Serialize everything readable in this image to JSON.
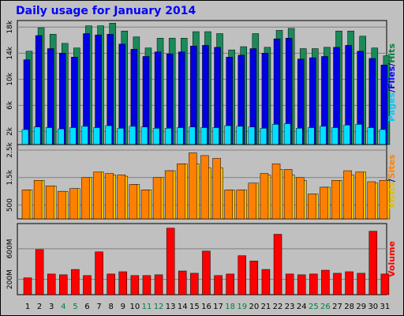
{
  "chart_data": {
    "type": "bar",
    "title": "Daily usage for January 2014",
    "days": [
      "1",
      "2",
      "3",
      "4",
      "5",
      "6",
      "7",
      "8",
      "9",
      "10",
      "11",
      "12",
      "13",
      "14",
      "15",
      "16",
      "17",
      "18",
      "19",
      "20",
      "21",
      "22",
      "23",
      "24",
      "25",
      "26",
      "27",
      "28",
      "29",
      "30",
      "31"
    ],
    "weekend_days": [
      "4",
      "5",
      "11",
      "12",
      "18",
      "19",
      "25",
      "26"
    ],
    "panels": [
      {
        "id": "pages-files-hits",
        "ylabel_parts": [
          {
            "text": "Pages",
            "color": "#00c8ff"
          },
          {
            "text": "/",
            "color": "#00008b"
          },
          {
            "text": "Files",
            "color": "#0000ff"
          },
          {
            "text": "/",
            "color": "#00008b"
          },
          {
            "text": "Hits",
            "color": "#008040"
          }
        ],
        "ylim": [
          0,
          19000
        ],
        "yticks": [
          2000,
          6000,
          10000,
          14000,
          18000
        ],
        "ytick_labels": [
          "2k",
          "6k",
          "10k",
          "14k",
          "18k"
        ],
        "series": [
          {
            "name": "Hits",
            "color": "#1a8a5a",
            "values": [
              14300,
              17900,
              16900,
              15500,
              14800,
              18200,
              18200,
              18600,
              17400,
              16500,
              14800,
              16300,
              16300,
              16300,
              17300,
              17300,
              17000,
              14500,
              15000,
              17000,
              14900,
              17500,
              17800,
              14700,
              14700,
              14900,
              17400,
              17400,
              16600,
              14800,
              13600
            ]
          },
          {
            "name": "Files",
            "color": "#0000e0",
            "values": [
              13000,
              16700,
              14700,
              14000,
              13400,
              17000,
              16800,
              16900,
              15400,
              14600,
              13500,
              14200,
              13900,
              14200,
              15100,
              15200,
              14900,
              13400,
              13700,
              14700,
              14000,
              16200,
              16300,
              13100,
              13300,
              13500,
              14900,
              15200,
              14300,
              13200,
              12200
            ]
          },
          {
            "name": "Pages",
            "color": "#00e0ff",
            "values": [
              2300,
              2700,
              2600,
              2400,
              2600,
              2800,
              2600,
              2900,
              2500,
              2800,
              2700,
              2500,
              2500,
              2600,
              2700,
              2600,
              2600,
              2900,
              2800,
              2700,
              2500,
              3100,
              3200,
              2500,
              2600,
              2800,
              2600,
              3000,
              3100,
              2600,
              2300
            ]
          }
        ]
      },
      {
        "id": "visits-sites",
        "ylabel_parts": [
          {
            "text": "Visits",
            "color": "#e0c000"
          },
          {
            "text": "/",
            "color": "#00008b"
          },
          {
            "text": "Sites",
            "color": "#ff8000"
          }
        ],
        "ylim": [
          0,
          2700
        ],
        "yticks": [
          500,
          1500,
          2500
        ],
        "ytick_labels": [
          "500",
          "1.5k",
          "2.5k"
        ],
        "series": [
          {
            "name": "Visits",
            "color": "#ffc000",
            "values": [
              1050,
              1400,
              1200,
              1000,
              1100,
              1500,
              1700,
              1600,
              1550,
              1250,
              1050,
              1500,
              1750,
              2000,
              2000,
              1850,
              1850,
              1050,
              1050,
              1300,
              1600,
              1800,
              1600,
              1400,
              900,
              1150,
              1400,
              1600,
              1700,
              1300,
              1400
            ]
          },
          {
            "name": "Sites",
            "color": "#ff8000",
            "values": [
              1050,
              1400,
              1200,
              1000,
              1100,
              1500,
              1700,
              1650,
              1600,
              1250,
              1050,
              1500,
              1750,
              2000,
              2400,
              2300,
              2200,
              1050,
              1050,
              1300,
              1650,
              2000,
              1800,
              1500,
              900,
              1150,
              1400,
              1750,
              1700,
              1350,
              1400
            ]
          }
        ]
      },
      {
        "id": "volume",
        "ylabel_parts": [
          {
            "text": "Volume",
            "color": "#ff0000"
          }
        ],
        "ylim": [
          0,
          930
        ],
        "yticks": [
          200,
          600
        ],
        "ytick_labels": [
          "200M",
          "600M"
        ],
        "series": [
          {
            "name": "Volume",
            "color": "#ff0000",
            "values": [
              220,
              590,
              270,
              260,
              330,
              250,
              560,
              270,
              300,
              250,
              250,
              260,
              870,
              310,
              280,
              570,
              250,
              270,
              510,
              440,
              330,
              790,
              270,
              260,
              270,
              320,
              280,
              300,
              280,
              830,
              270
            ]
          }
        ]
      }
    ]
  }
}
